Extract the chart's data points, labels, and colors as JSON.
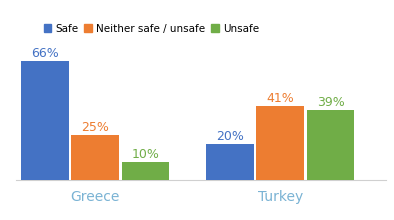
{
  "categories": [
    "Greece",
    "Turkey"
  ],
  "series": [
    {
      "label": "Safe",
      "values": [
        66,
        20
      ],
      "color": "#4472c4"
    },
    {
      "label": "Neither safe / unsafe",
      "values": [
        25,
        41
      ],
      "color": "#ed7d31"
    },
    {
      "label": "Unsafe",
      "values": [
        10,
        39
      ],
      "color": "#70ad47"
    }
  ],
  "bar_labels": [
    [
      "66%",
      "25%",
      "10%"
    ],
    [
      "20%",
      "41%",
      "39%"
    ]
  ],
  "x_label_color": "#7ab3d4",
  "ylim": [
    0,
    78
  ],
  "background_color": "#ffffff",
  "bar_width": 0.18,
  "group_centers": [
    0.35,
    1.05
  ],
  "legend_fontsize": 7.5,
  "tick_label_fontsize": 10,
  "bar_label_fontsize": 9
}
